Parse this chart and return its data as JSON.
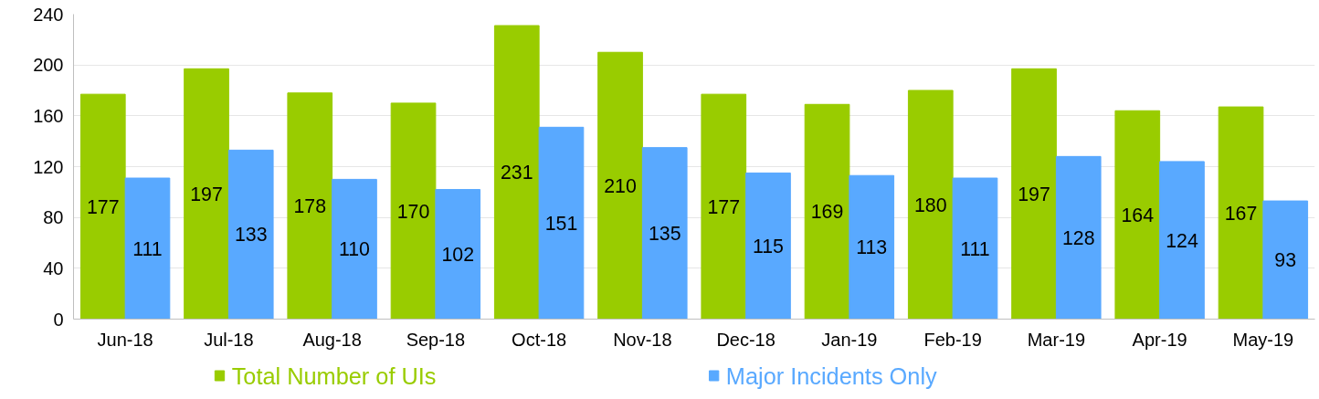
{
  "chart_data": {
    "type": "bar",
    "categories": [
      "Jun-18",
      "Jul-18",
      "Aug-18",
      "Sep-18",
      "Oct-18",
      "Nov-18",
      "Dec-18",
      "Jan-19",
      "Feb-19",
      "Mar-19",
      "Apr-19",
      "May-19"
    ],
    "series": [
      {
        "name": "Total Number of UIs",
        "color": "#99cc00",
        "values": [
          177,
          197,
          178,
          170,
          231,
          210,
          177,
          169,
          180,
          197,
          164,
          167
        ]
      },
      {
        "name": "Major Incidents Only",
        "color": "#59a9ff",
        "values": [
          111,
          133,
          110,
          102,
          151,
          135,
          115,
          113,
          111,
          128,
          124,
          93
        ]
      }
    ],
    "ylim": [
      0,
      240
    ],
    "yticks": [
      0,
      40,
      80,
      120,
      160,
      200,
      240
    ],
    "grid": "y",
    "legend": "bottom",
    "data_labels": true
  }
}
